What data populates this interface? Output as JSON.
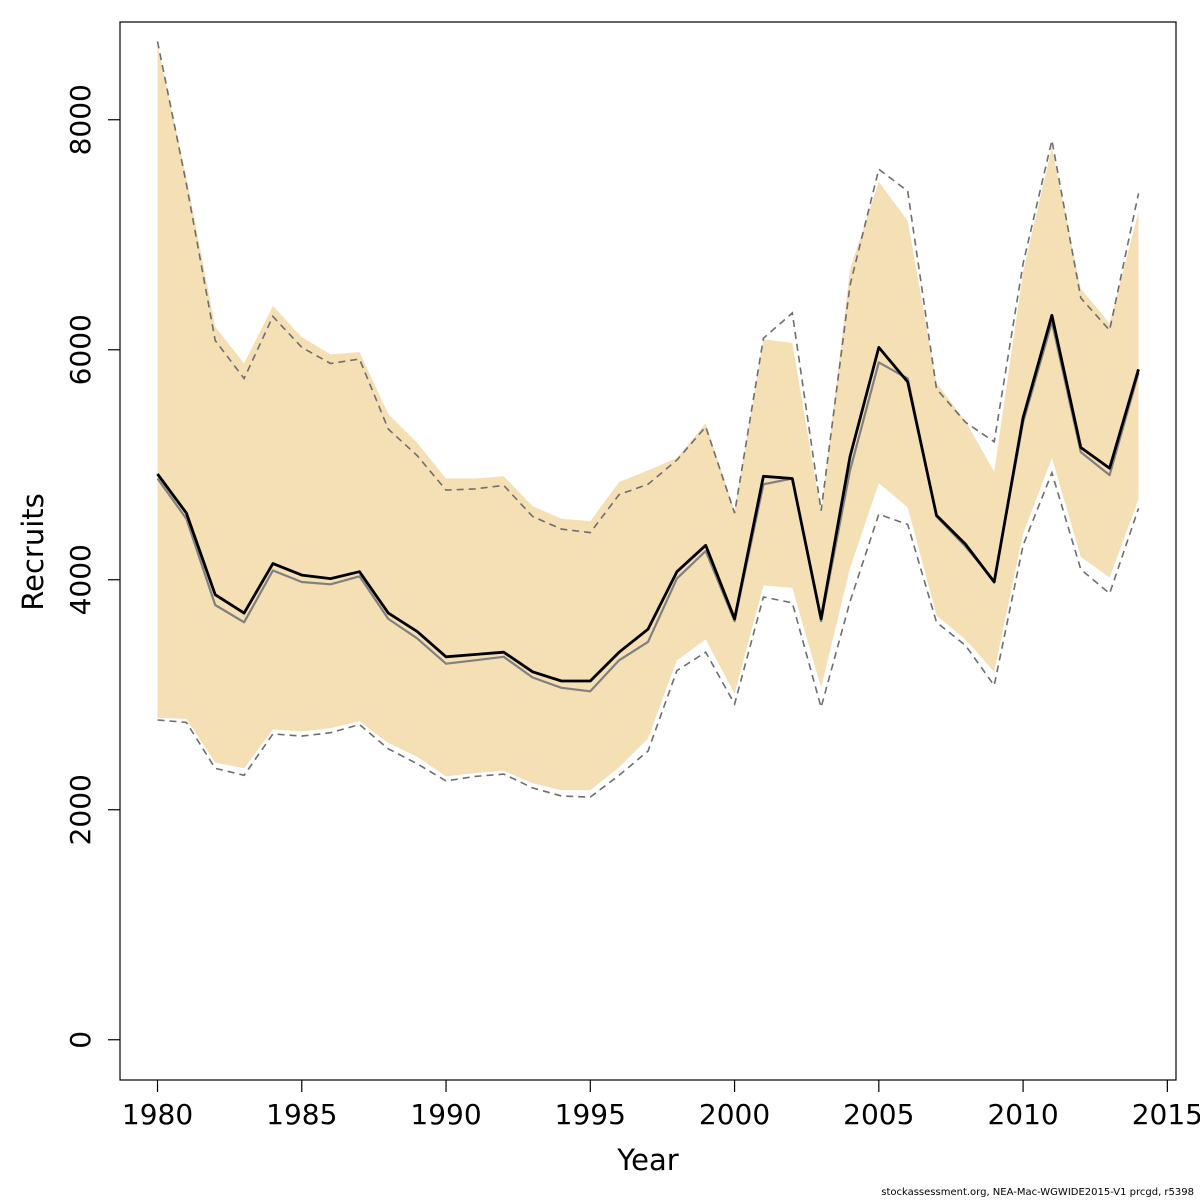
{
  "chart_data": {
    "type": "line",
    "title": "",
    "xlabel": "Year",
    "ylabel": "Recruits",
    "xlim": [
      1978.7,
      2015.3
    ],
    "ylim": [
      -350,
      8850
    ],
    "x_ticks": [
      1980,
      1985,
      1990,
      1995,
      2000,
      2005,
      2010,
      2015
    ],
    "x_tick_labels": [
      "1980",
      "1985",
      "1990",
      "1995",
      "2000",
      "2005",
      "2010",
      "2015"
    ],
    "y_ticks": [
      0,
      2000,
      4000,
      6000,
      8000
    ],
    "y_tick_labels": [
      "0",
      "2000",
      "4000",
      "6000",
      "8000"
    ],
    "grid": false,
    "legend": "none",
    "x": [
      1980,
      1981,
      1982,
      1983,
      1984,
      1985,
      1986,
      1987,
      1988,
      1989,
      1990,
      1991,
      1992,
      1993,
      1994,
      1995,
      1996,
      1997,
      1998,
      1999,
      2000,
      2001,
      2002,
      2003,
      2004,
      2005,
      2006,
      2007,
      2008,
      2009,
      2010,
      2011,
      2012,
      2013,
      2014
    ],
    "series": [
      {
        "role": "band_upper",
        "values": [
          8650,
          7500,
          6200,
          5880,
          6380,
          6110,
          5960,
          5980,
          5440,
          5190,
          4880,
          4880,
          4900,
          4640,
          4530,
          4510,
          4850,
          4950,
          5060,
          5360,
          4600,
          6090,
          6060,
          4580,
          6700,
          7460,
          7120,
          5710,
          5380,
          4940,
          6680,
          7760,
          6530,
          6230,
          7200
        ]
      },
      {
        "role": "band_lower",
        "values": [
          2800,
          2790,
          2410,
          2360,
          2700,
          2680,
          2710,
          2770,
          2580,
          2460,
          2290,
          2320,
          2340,
          2230,
          2170,
          2170,
          2370,
          2620,
          3300,
          3480,
          3010,
          3950,
          3930,
          3060,
          4100,
          4840,
          4630,
          3690,
          3480,
          3200,
          4400,
          5060,
          4200,
          4020,
          4700
        ]
      },
      {
        "role": "ci_upper_dashed",
        "values": [
          8680,
          7440,
          6080,
          5750,
          6290,
          6020,
          5880,
          5920,
          5310,
          5080,
          4780,
          4790,
          4820,
          4550,
          4440,
          4410,
          4740,
          4830,
          5040,
          5330,
          4580,
          6100,
          6320,
          4600,
          6560,
          7570,
          7380,
          5660,
          5370,
          5200,
          6750,
          7820,
          6450,
          6170,
          7360
        ]
      },
      {
        "role": "ci_lower_dashed",
        "values": [
          2780,
          2760,
          2360,
          2300,
          2660,
          2640,
          2670,
          2740,
          2530,
          2400,
          2250,
          2290,
          2310,
          2190,
          2120,
          2110,
          2300,
          2510,
          3210,
          3370,
          2920,
          3850,
          3800,
          2890,
          3810,
          4570,
          4480,
          3630,
          3430,
          3080,
          4300,
          4930,
          4090,
          3880,
          4620
        ]
      },
      {
        "role": "estimate_grey",
        "values": [
          4880,
          4530,
          3780,
          3630,
          4080,
          3980,
          3960,
          4030,
          3660,
          3490,
          3270,
          3300,
          3330,
          3150,
          3060,
          3030,
          3300,
          3460,
          4010,
          4250,
          3640,
          4830,
          4880,
          3640,
          4950,
          5890,
          5750,
          4550,
          4290,
          3990,
          5370,
          6240,
          5110,
          4910,
          5800
        ]
      },
      {
        "role": "estimate",
        "values": [
          4920,
          4580,
          3870,
          3710,
          4140,
          4040,
          4010,
          4070,
          3710,
          3550,
          3330,
          3350,
          3370,
          3200,
          3120,
          3120,
          3370,
          3570,
          4070,
          4300,
          3660,
          4900,
          4880,
          3660,
          5070,
          6020,
          5720,
          4560,
          4310,
          3980,
          5410,
          6300,
          5150,
          4970,
          5830
        ]
      }
    ]
  },
  "colors": {
    "band_fill": "#f5dfb4",
    "estimate": "#000000",
    "estimate_grey": "#808080",
    "ci_dashed": "#6e6e6e",
    "axis": "#000000"
  },
  "footer_text": "stockassessment.org, NEA-Mac-WGWIDE2015-V1  prcgd, r5398"
}
